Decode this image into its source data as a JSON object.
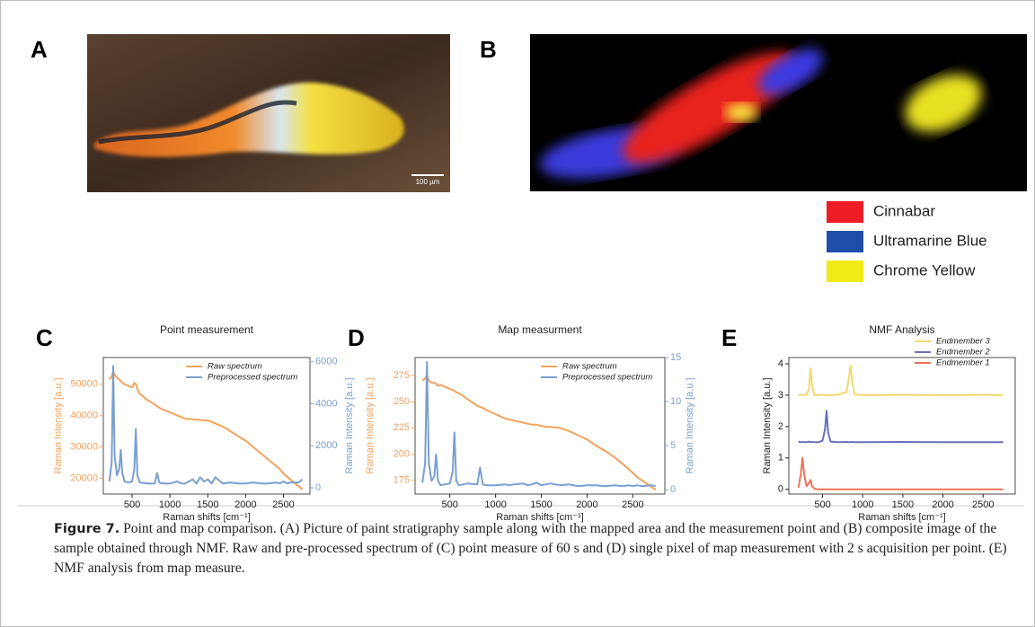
{
  "panels": {
    "a": {
      "label": "A",
      "scale_bar": "100 µm"
    },
    "b": {
      "label": "B",
      "legend": [
        {
          "name": "Cinnabar",
          "color": "#ee1c25"
        },
        {
          "name": "Ultramarine Blue",
          "color": "#1f4ea8"
        },
        {
          "name": "Chrome Yellow",
          "color": "#f0ea16"
        }
      ]
    }
  },
  "chart_data": [
    {
      "type": "line",
      "panel": "C",
      "title": "Point measurement",
      "xlabel": "Raman shifts [cm⁻¹]",
      "ylabel": "Raman Intensity [a.u.]",
      "y2label": "Raman Intensity [a.u.]",
      "x": [
        200,
        230,
        250,
        270,
        300,
        330,
        350,
        370,
        400,
        450,
        500,
        530,
        550,
        570,
        600,
        700,
        800,
        830,
        860,
        900,
        1000,
        1100,
        1150,
        1200,
        1300,
        1350,
        1400,
        1450,
        1500,
        1550,
        1600,
        1700,
        1800,
        1900,
        2000,
        2100,
        2200,
        2300,
        2400,
        2450,
        2500,
        2550,
        2600,
        2700,
        2750
      ],
      "xlim": [
        120,
        2850
      ],
      "xticks": [
        500,
        1000,
        1500,
        2000,
        2500
      ],
      "ylim": [
        15000,
        58500
      ],
      "yticks": [
        20000,
        30000,
        40000,
        50000
      ],
      "y2lim": [
        -300,
        6200
      ],
      "y2ticks": [
        0,
        2000,
        4000,
        6000
      ],
      "series": [
        {
          "name": "Raw spectrum",
          "color": "#f2a35e",
          "values": [
            51500,
            52500,
            54000,
            53000,
            52000,
            51500,
            51000,
            50500,
            50000,
            49500,
            49000,
            50500,
            50000,
            48500,
            47000,
            45000,
            43500,
            43000,
            42500,
            42000,
            41000,
            40000,
            39500,
            39000,
            38800,
            38700,
            38600,
            38500,
            38400,
            38000,
            37500,
            36500,
            35000,
            33500,
            32000,
            30000,
            28000,
            26000,
            24000,
            23000,
            21500,
            20500,
            19500,
            17500,
            16500
          ]
        },
        {
          "name": "Preprocessed spectrum",
          "color": "#7a9fd0",
          "axis": "y2",
          "values": [
            300,
            1200,
            5800,
            1500,
            600,
            900,
            1800,
            700,
            300,
            250,
            300,
            900,
            2800,
            600,
            250,
            200,
            200,
            700,
            250,
            200,
            200,
            300,
            200,
            200,
            400,
            200,
            500,
            300,
            400,
            200,
            500,
            200,
            250,
            200,
            200,
            250,
            200,
            200,
            250,
            200,
            300,
            200,
            250,
            250,
            400
          ]
        }
      ]
    },
    {
      "type": "line",
      "panel": "D",
      "title": "Map measurment",
      "xlabel": "Raman shifts [cm⁻¹]",
      "ylabel": "Raman Intensity [a.u.]",
      "y2label": "Raman Intensity [a.u.]",
      "x": [
        200,
        230,
        250,
        270,
        300,
        330,
        350,
        370,
        400,
        450,
        500,
        530,
        550,
        570,
        600,
        700,
        800,
        830,
        860,
        900,
        1000,
        1100,
        1150,
        1200,
        1300,
        1350,
        1400,
        1450,
        1500,
        1550,
        1600,
        1700,
        1800,
        1900,
        2000,
        2100,
        2200,
        2300,
        2400,
        2450,
        2500,
        2550,
        2600,
        2700,
        2750
      ],
      "xlim": [
        120,
        2850
      ],
      "xticks": [
        500,
        1000,
        1500,
        2000,
        2500
      ],
      "ylim": [
        162,
        292
      ],
      "yticks": [
        175,
        200,
        225,
        250,
        275
      ],
      "y2lim": [
        -0.5,
        15
      ],
      "y2ticks": [
        0,
        5,
        10,
        15
      ],
      "series": [
        {
          "name": "Raw spectrum",
          "color": "#f2a35e",
          "values": [
            270,
            272,
            275,
            270,
            268,
            268,
            267,
            265,
            266,
            264,
            262,
            261,
            260,
            259,
            258,
            252,
            246,
            245,
            244,
            242,
            238,
            234,
            233,
            232,
            230,
            229,
            228,
            228,
            227,
            226,
            226,
            225,
            222,
            218,
            214,
            208,
            203,
            197,
            190,
            186,
            182,
            178,
            175,
            169,
            166
          ]
        },
        {
          "name": "Preprocessed spectrum",
          "color": "#7a9fd0",
          "axis": "y2",
          "values": [
            0.8,
            3,
            14.5,
            3,
            1,
            1.5,
            4,
            1,
            0.5,
            0.6,
            0.7,
            2,
            6.5,
            1,
            0.5,
            0.7,
            0.6,
            2.5,
            0.6,
            0.5,
            0.5,
            0.6,
            0.5,
            0.6,
            0.7,
            0.5,
            0.6,
            0.8,
            0.5,
            0.6,
            0.7,
            0.5,
            0.6,
            0.4,
            0.5,
            0.5,
            0.4,
            0.5,
            0.4,
            0.5,
            0.4,
            0.5,
            0.4,
            0.5,
            0.4
          ]
        }
      ]
    },
    {
      "type": "line",
      "panel": "E",
      "title": "NMF Analysis",
      "xlabel": "Raman shifts [cm⁻¹]",
      "ylabel": "Raman Intensity [a.u.]",
      "x": [
        200,
        230,
        250,
        270,
        300,
        330,
        350,
        370,
        400,
        450,
        500,
        530,
        550,
        570,
        600,
        700,
        800,
        830,
        850,
        870,
        900,
        1000,
        1500,
        2000,
        2500,
        2750
      ],
      "xlim": [
        80,
        2900
      ],
      "xticks": [
        500,
        1000,
        1500,
        2000,
        2500
      ],
      "ylim": [
        -0.15,
        4.2
      ],
      "yticks": [
        0,
        1,
        2,
        3,
        4
      ],
      "series": [
        {
          "name": "Endmember 3",
          "color": "#f5d870",
          "values": [
            3,
            3,
            3.02,
            3,
            3.01,
            3.2,
            3.85,
            3.3,
            3,
            3,
            3.02,
            3,
            3.01,
            3,
            3,
            3.02,
            3.1,
            3.6,
            3.95,
            3.4,
            3.02,
            3,
            3.01,
            3,
            3.01,
            3
          ]
        },
        {
          "name": "Endmember 2",
          "color": "#6b70b8",
          "values": [
            1.52,
            1.5,
            1.51,
            1.5,
            1.5,
            1.52,
            1.5,
            1.51,
            1.5,
            1.5,
            1.55,
            1.9,
            2.5,
            1.8,
            1.52,
            1.5,
            1.51,
            1.5,
            1.5,
            1.51,
            1.5,
            1.5,
            1.51,
            1.5,
            1.5,
            1.5
          ]
        },
        {
          "name": "Endmember 1",
          "color": "#ec7358",
          "values": [
            0.05,
            0.5,
            1.0,
            0.5,
            0.1,
            0.2,
            0.3,
            0.1,
            0.02,
            0,
            0,
            0,
            0,
            0,
            0,
            0,
            0,
            0,
            0,
            0,
            0,
            0,
            0,
            0,
            0,
            0
          ]
        }
      ]
    }
  ],
  "caption": {
    "label": "Figure 7.",
    "text": "Point and map comparison. (A) Picture of paint stratigraphy sample along with the mapped area and the measurement point and (B) composite image of the sample obtained through NMF. Raw and pre-processed spectrum of (C) point measure of 60 s and (D) single pixel of map measurement with 2 s acquisition per point. (E) NMF analysis from map measure."
  }
}
